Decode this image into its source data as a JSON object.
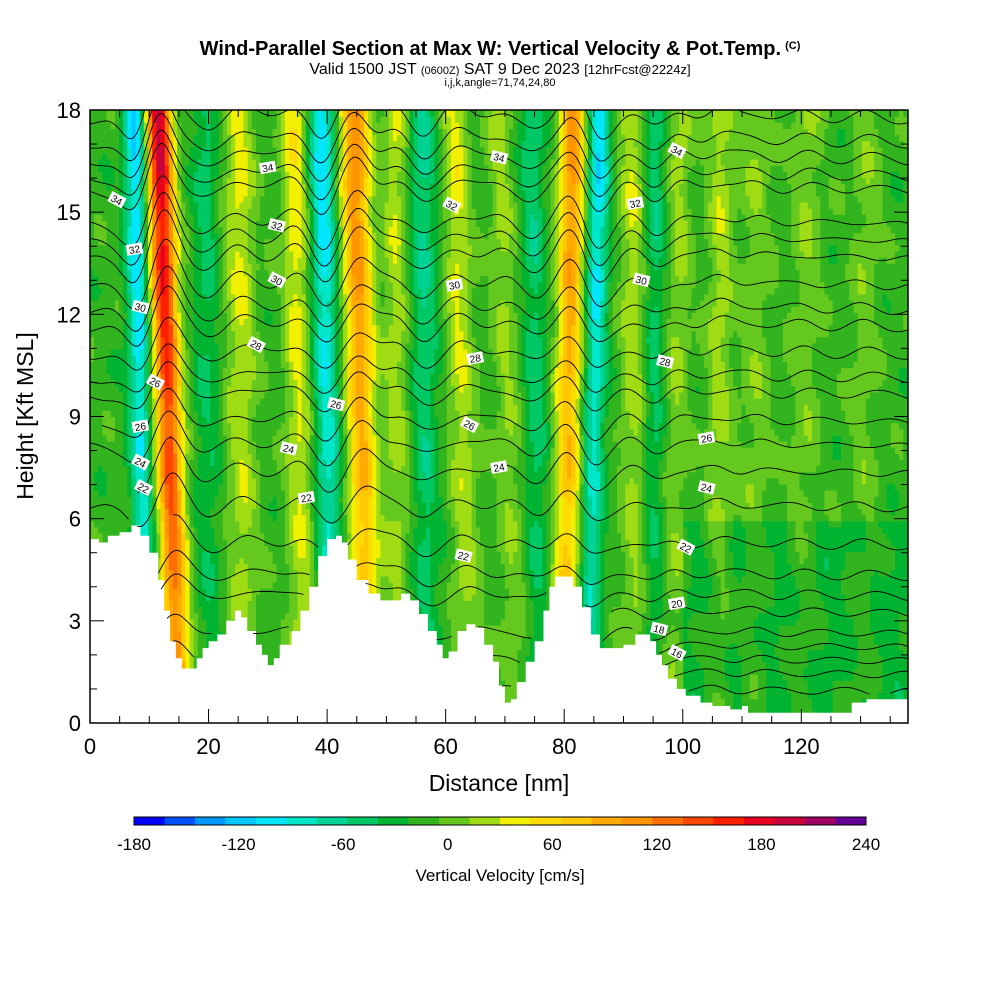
{
  "header": {
    "title": "Wind-Parallel Section at Max W: Vertical Velocity & Pot.Temp.",
    "copyright": "(C)",
    "valid_pre": "Valid 1500 JST",
    "valid_utc": "(0600Z)",
    "valid_date": "SAT 9 Dec 2023",
    "forecast": "[12hrFcst@2224z]",
    "params": "i,j,k,angle=71,74,24,80"
  },
  "chart_data": {
    "type": "heatmap",
    "xlabel": "Distance [nm]",
    "ylabel": "Height [Kft MSL]",
    "xlim": [
      0,
      138
    ],
    "ylim": [
      0,
      18
    ],
    "x_ticks": [
      "0",
      "20",
      "40",
      "60",
      "80",
      "100",
      "120"
    ],
    "y_ticks": [
      "0",
      "3",
      "6",
      "9",
      "12",
      "15",
      "18"
    ],
    "colorbar": {
      "label": "Vertical Velocity [cm/s]",
      "min": -180,
      "max": 240,
      "step": 20,
      "tick_labels": [
        "-180",
        "-120",
        "-60",
        "0",
        "60",
        "120",
        "180",
        "240"
      ],
      "colors": [
        "#0000ff",
        "#0050ff",
        "#0096ff",
        "#00c8ff",
        "#00e6ff",
        "#00e6c8",
        "#00d296",
        "#00c864",
        "#00b432",
        "#32b41e",
        "#64c81e",
        "#a0dc14",
        "#f0f000",
        "#ffdc00",
        "#ffc800",
        "#ffaa00",
        "#ff9600",
        "#ff6e00",
        "#ff4600",
        "#ff1e00",
        "#e6001e",
        "#c8003c",
        "#a00064",
        "#640096"
      ]
    },
    "terrain_kft": [
      [
        0,
        5.4
      ],
      [
        1.5,
        5.3
      ],
      [
        3,
        5.5
      ],
      [
        5,
        5.6
      ],
      [
        7,
        5.8
      ],
      [
        8.5,
        5.5
      ],
      [
        10,
        5.0
      ],
      [
        11.5,
        4.2
      ],
      [
        12.5,
        3.3
      ],
      [
        13.5,
        2.4
      ],
      [
        14.5,
        1.9
      ],
      [
        15.5,
        1.6
      ],
      [
        17,
        1.6
      ],
      [
        18,
        1.9
      ],
      [
        19,
        2.2
      ],
      [
        20,
        2.4
      ],
      [
        21.5,
        2.6
      ],
      [
        23,
        3.0
      ],
      [
        24.5,
        3.3
      ],
      [
        25.5,
        3.1
      ],
      [
        26.5,
        2.7
      ],
      [
        28,
        2.3
      ],
      [
        29,
        2.0
      ],
      [
        30,
        1.7
      ],
      [
        31,
        1.9
      ],
      [
        32,
        2.3
      ],
      [
        34,
        2.7
      ],
      [
        35.5,
        3.3
      ],
      [
        37,
        4.0
      ],
      [
        38.5,
        4.9
      ],
      [
        40,
        5.4
      ],
      [
        41.5,
        5.5
      ],
      [
        42.5,
        5.3
      ],
      [
        43.5,
        4.8
      ],
      [
        45,
        4.2
      ],
      [
        47,
        3.8
      ],
      [
        49,
        3.6
      ],
      [
        51,
        3.6
      ],
      [
        52.5,
        3.8
      ],
      [
        54,
        3.6
      ],
      [
        55.5,
        3.2
      ],
      [
        57,
        2.7
      ],
      [
        58.5,
        2.3
      ],
      [
        59.5,
        1.9
      ],
      [
        60.5,
        2.1
      ],
      [
        62,
        2.7
      ],
      [
        63.5,
        2.9
      ],
      [
        65,
        2.8
      ],
      [
        66.5,
        2.3
      ],
      [
        68,
        1.8
      ],
      [
        69,
        1.1
      ],
      [
        70,
        0.6
      ],
      [
        71,
        0.7
      ],
      [
        72,
        1.2
      ],
      [
        73.5,
        1.8
      ],
      [
        75,
        2.4
      ],
      [
        76.5,
        3.3
      ],
      [
        77.5,
        4.0
      ],
      [
        78.5,
        4.3
      ],
      [
        80,
        4.3
      ],
      [
        81.5,
        4.0
      ],
      [
        83,
        3.4
      ],
      [
        84.5,
        2.6
      ],
      [
        86,
        2.2
      ],
      [
        88,
        2.2
      ],
      [
        90,
        2.3
      ],
      [
        92,
        2.6
      ],
      [
        93.5,
        2.6
      ],
      [
        94.5,
        2.4
      ],
      [
        95.5,
        2.0
      ],
      [
        96.5,
        1.7
      ],
      [
        97.5,
        1.3
      ],
      [
        99,
        1.0
      ],
      [
        100.5,
        0.8
      ],
      [
        103,
        0.6
      ],
      [
        105,
        0.5
      ],
      [
        108,
        0.4
      ],
      [
        110,
        0.5
      ],
      [
        111,
        0.3
      ],
      [
        113,
        0.3
      ],
      [
        115,
        0.3
      ],
      [
        118,
        0.3
      ],
      [
        121,
        0.3
      ],
      [
        124,
        0.3
      ],
      [
        127,
        0.3
      ],
      [
        128.5,
        0.6
      ],
      [
        131,
        0.7
      ],
      [
        134,
        0.7
      ],
      [
        138,
        0.7
      ]
    ],
    "updraft_bands": [
      {
        "x_bottom": 15.0,
        "x_top": 11.5,
        "w_max": 240,
        "width_nm": 2.2
      },
      {
        "x_bottom": 26.0,
        "x_top": 25.0,
        "w_max": 60,
        "width_nm": 2.5
      },
      {
        "x_bottom": 36.0,
        "x_top": 34.5,
        "w_max": 70,
        "width_nm": 2.2
      },
      {
        "x_bottom": 47.0,
        "x_top": 44.5,
        "w_max": 150,
        "width_nm": 2.5
      },
      {
        "x_bottom": 52.0,
        "x_top": 51.5,
        "w_max": 50,
        "width_nm": 2.0
      },
      {
        "x_bottom": 64.0,
        "x_top": 61.5,
        "w_max": 60,
        "width_nm": 2.2
      },
      {
        "x_bottom": 72.0,
        "x_top": 69.0,
        "w_max": 40,
        "width_nm": 2.0
      },
      {
        "x_bottom": 80.0,
        "x_top": 81.5,
        "w_max": 140,
        "width_nm": 2.2
      },
      {
        "x_bottom": 92.0,
        "x_top": 91.5,
        "w_max": 50,
        "width_nm": 2.2
      },
      {
        "x_bottom": 98.0,
        "x_top": 99.5,
        "w_max": 40,
        "width_nm": 2.2
      },
      {
        "x_bottom": 106.0,
        "x_top": 106.5,
        "w_max": 45,
        "width_nm": 2.2
      },
      {
        "x_bottom": 112.0,
        "x_top": 112.5,
        "w_max": 30,
        "width_nm": 2.5
      },
      {
        "x_bottom": 120.0,
        "x_top": 121.0,
        "w_max": 30,
        "width_nm": 2.5
      },
      {
        "x_bottom": 130.0,
        "x_top": 131.0,
        "w_max": 25,
        "width_nm": 2.5
      }
    ],
    "downdraft_bands": [
      {
        "x_bottom": 9.5,
        "x_top": 7.5,
        "w_min": -120,
        "width_nm": 1.8
      },
      {
        "x_bottom": 20.0,
        "x_top": 19.5,
        "w_min": -40,
        "width_nm": 2.2
      },
      {
        "x_bottom": 41.0,
        "x_top": 39.0,
        "w_min": -110,
        "width_nm": 2.2
      },
      {
        "x_bottom": 57.0,
        "x_top": 56.0,
        "w_min": -60,
        "width_nm": 2.2
      },
      {
        "x_bottom": 76.0,
        "x_top": 74.5,
        "w_min": -50,
        "width_nm": 2.0
      },
      {
        "x_bottom": 84.0,
        "x_top": 86.0,
        "w_min": -110,
        "width_nm": 1.8
      },
      {
        "x_bottom": 95.0,
        "x_top": 95.5,
        "w_min": -50,
        "width_nm": 2.0
      }
    ],
    "theta_contours": [
      {
        "value": 16,
        "height_kft": 1.4,
        "start_x": 97
      },
      {
        "value": 18,
        "height_kft": 2.2,
        "start_x": 93
      },
      {
        "value": 20,
        "height_kft": 3.2,
        "start_x": 88
      },
      {
        "value": 22,
        "height_kft": 5.2,
        "start_x": 14
      },
      {
        "value": 24,
        "height_kft": 7.3,
        "start_x": 8
      },
      {
        "value": 26,
        "height_kft": 8.8,
        "start_x": 2
      },
      {
        "value": 28,
        "height_kft": 10.8,
        "start_x": 0
      },
      {
        "value": 30,
        "height_kft": 12.8,
        "start_x": 0
      },
      {
        "value": 32,
        "height_kft": 14.6,
        "start_x": 0
      },
      {
        "value": 34,
        "height_kft": 16.5,
        "start_x": 0
      }
    ],
    "theta_extra_lines_kft": [
      0.9,
      1.8,
      2.6,
      3.7,
      4.3,
      6.3,
      8.1,
      9.6,
      10.1,
      11.6,
      12.1,
      13.6,
      14.1,
      15.6,
      16.0,
      17.0,
      17.7
    ],
    "theta_labels": [
      {
        "text": "34",
        "x": 4.5,
        "y": 15.35
      },
      {
        "text": "34",
        "x": 30.0,
        "y": 16.3
      },
      {
        "text": "34",
        "x": 69.0,
        "y": 16.6
      },
      {
        "text": "34",
        "x": 99.0,
        "y": 16.8
      },
      {
        "text": "32",
        "x": 7.5,
        "y": 13.9
      },
      {
        "text": "32",
        "x": 31.5,
        "y": 14.6
      },
      {
        "text": "32",
        "x": 61.0,
        "y": 15.2
      },
      {
        "text": "32",
        "x": 92.0,
        "y": 15.25
      },
      {
        "text": "30",
        "x": 8.5,
        "y": 12.2
      },
      {
        "text": "30",
        "x": 31.5,
        "y": 13.0
      },
      {
        "text": "30",
        "x": 61.5,
        "y": 12.85
      },
      {
        "text": "30",
        "x": 93.0,
        "y": 13.0
      },
      {
        "text": "28",
        "x": 28.0,
        "y": 11.1
      },
      {
        "text": "28",
        "x": 65.0,
        "y": 10.7
      },
      {
        "text": "28",
        "x": 97.0,
        "y": 10.6
      },
      {
        "text": "26",
        "x": 11.0,
        "y": 10.0
      },
      {
        "text": "26",
        "x": 8.5,
        "y": 8.7
      },
      {
        "text": "26",
        "x": 41.5,
        "y": 9.35
      },
      {
        "text": "26",
        "x": 64.0,
        "y": 8.75
      },
      {
        "text": "26",
        "x": 104.0,
        "y": 8.35
      },
      {
        "text": "24",
        "x": 33.5,
        "y": 8.05
      },
      {
        "text": "24",
        "x": 8.5,
        "y": 7.65
      },
      {
        "text": "24",
        "x": 69.0,
        "y": 7.5
      },
      {
        "text": "24",
        "x": 104.0,
        "y": 6.9
      },
      {
        "text": "22",
        "x": 9.0,
        "y": 6.9
      },
      {
        "text": "22",
        "x": 36.5,
        "y": 6.6
      },
      {
        "text": "22",
        "x": 63.0,
        "y": 4.9
      },
      {
        "text": "22",
        "x": 100.5,
        "y": 5.15
      },
      {
        "text": "20",
        "x": 99.0,
        "y": 3.5
      },
      {
        "text": "18",
        "x": 96.0,
        "y": 2.75
      },
      {
        "text": "16",
        "x": 99.0,
        "y": 2.05
      }
    ]
  }
}
